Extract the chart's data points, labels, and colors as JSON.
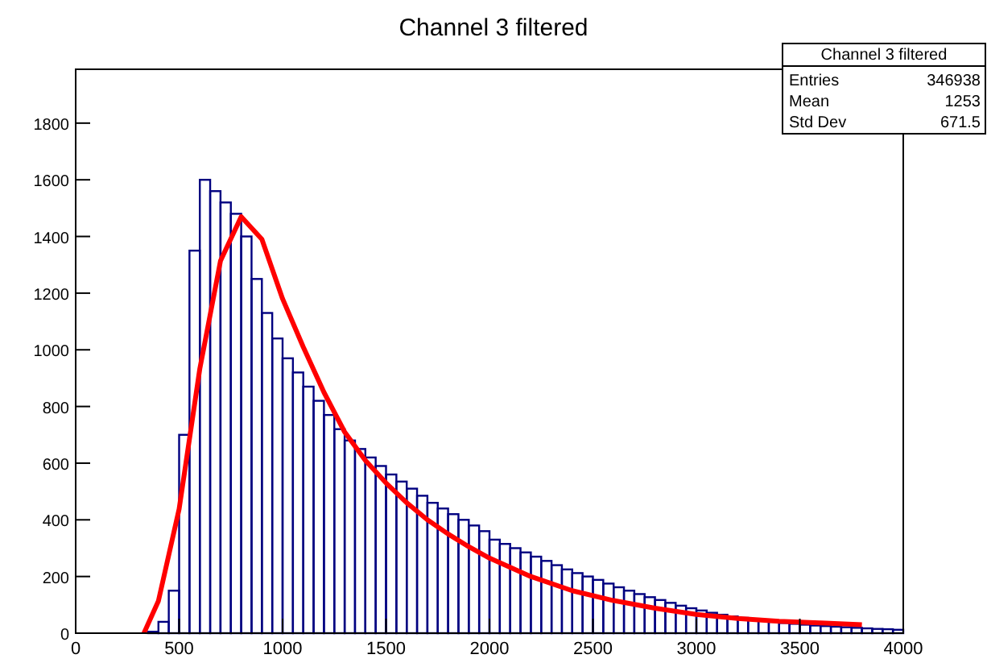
{
  "chart_data": {
    "type": "histogram",
    "title": "Channel 3 filtered",
    "annotations": [
      "Channel 3 filtered",
      "Entries",
      "346938",
      "Mean",
      "1253",
      "Std Dev",
      "671.5"
    ],
    "bins": [
      0,
      50,
      100,
      150,
      200,
      250,
      300,
      350,
      400,
      450,
      500,
      550,
      600,
      650,
      700,
      750,
      800,
      850,
      900,
      950,
      1000,
      1050,
      1100,
      1150,
      1200,
      1250,
      1300,
      1350,
      1400,
      1450,
      1500,
      1550,
      1600,
      1650,
      1700,
      1750,
      1800,
      1850,
      1900,
      1950,
      2000,
      2050,
      2100,
      2150,
      2200,
      2250,
      2300,
      2350,
      2400,
      2450,
      2500,
      2550,
      2600,
      2650,
      2700,
      2750,
      2800,
      2850,
      2900,
      2950,
      3000,
      3050,
      3100,
      3150,
      3200,
      3250,
      3300,
      3350,
      3400,
      3450,
      3500,
      3550,
      3600,
      3650,
      3700,
      3750,
      3800,
      3850,
      3900,
      3950,
      4000
    ],
    "series": [
      {
        "color": "#000080",
        "values": [
          0,
          0,
          0,
          0,
          0,
          0,
          0,
          5,
          40,
          150,
          700,
          1350,
          1600,
          1560,
          1520,
          1480,
          1400,
          1250,
          1130,
          1040,
          970,
          920,
          870,
          820,
          770,
          720,
          680,
          650,
          620,
          590,
          560,
          535,
          510,
          485,
          460,
          440,
          420,
          400,
          380,
          360,
          330,
          315,
          300,
          285,
          270,
          255,
          240,
          225,
          212,
          200,
          188,
          175,
          162,
          150,
          138,
          127,
          117,
          107,
          97,
          88,
          80,
          72,
          65,
          59,
          54,
          49,
          44,
          40,
          36,
          33,
          30,
          27,
          25,
          23,
          21,
          19,
          17,
          15,
          14,
          12
        ]
      },
      {
        "type": "line",
        "color": "#ff0000",
        "x": [
          330,
          400,
          500,
          600,
          700,
          800,
          900,
          1000,
          1100,
          1200,
          1300,
          1400,
          1500,
          1600,
          1700,
          1800,
          1900,
          2000,
          2200,
          2400,
          2600,
          2800,
          3000,
          3200,
          3400,
          3600,
          3800
        ],
        "values": [
          0,
          114,
          438,
          933,
          1314,
          1470,
          1390,
          1180,
          1010,
          850,
          710,
          610,
          530,
          460,
          400,
          350,
          305,
          265,
          200,
          150,
          115,
          88,
          66,
          52,
          42,
          36,
          30
        ]
      }
    ],
    "xlim": [
      0,
      4000
    ],
    "xticks": [
      0,
      500,
      1000,
      1500,
      2000,
      2500,
      3000,
      3500,
      4000
    ],
    "ylim": [
      0,
      1990
    ],
    "yticks": [
      0,
      200,
      400,
      600,
      800,
      1000,
      1200,
      1400,
      1600,
      1800
    ],
    "grid": false
  }
}
